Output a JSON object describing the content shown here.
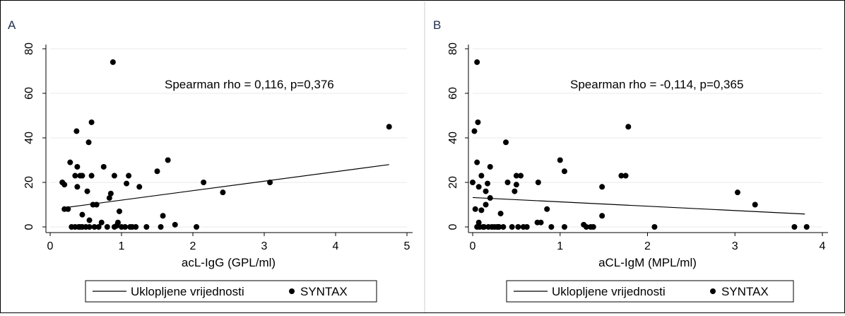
{
  "chart_data": [
    {
      "type": "scatter",
      "panel_label": "A",
      "annotation": "Spearman rho = 0,116, p=0,376",
      "xlabel": "acL-IgG (GPL/ml)",
      "ylabel": "",
      "xlim": [
        0,
        5
      ],
      "ylim": [
        0,
        80
      ],
      "xticks": [
        "0",
        "1",
        "2",
        "3",
        "4",
        "5"
      ],
      "yticks": [
        "0",
        "20",
        "40",
        "60",
        "80"
      ],
      "grid": true,
      "legend": {
        "placement": "bottom",
        "entries": [
          "Uklopljene vrijednosti",
          "SYNTAX"
        ]
      },
      "fit_line": {
        "name": "Uklopljene vrijednosti",
        "x": [
          0.17,
          4.75
        ],
        "y": [
          8.5,
          28
        ]
      },
      "series": [
        {
          "name": "SYNTAX",
          "points": [
            [
              0.17,
              20
            ],
            [
              0.2,
              19
            ],
            [
              0.2,
              8
            ],
            [
              0.25,
              8
            ],
            [
              0.28,
              29
            ],
            [
              0.3,
              0
            ],
            [
              0.35,
              0
            ],
            [
              0.35,
              23
            ],
            [
              0.37,
              43
            ],
            [
              0.38,
              18
            ],
            [
              0.38,
              27
            ],
            [
              0.4,
              0
            ],
            [
              0.42,
              0
            ],
            [
              0.42,
              23
            ],
            [
              0.45,
              23
            ],
            [
              0.45,
              0
            ],
            [
              0.45,
              5.5
            ],
            [
              0.5,
              0
            ],
            [
              0.52,
              16
            ],
            [
              0.54,
              38
            ],
            [
              0.55,
              0
            ],
            [
              0.55,
              3
            ],
            [
              0.58,
              47
            ],
            [
              0.58,
              23
            ],
            [
              0.6,
              10
            ],
            [
              0.62,
              0
            ],
            [
              0.65,
              10
            ],
            [
              0.68,
              0
            ],
            [
              0.72,
              2
            ],
            [
              0.75,
              27
            ],
            [
              0.8,
              0
            ],
            [
              0.83,
              13
            ],
            [
              0.85,
              15
            ],
            [
              0.88,
              74
            ],
            [
              0.9,
              23
            ],
            [
              0.9,
              0
            ],
            [
              0.93,
              0.5
            ],
            [
              0.95,
              2
            ],
            [
              0.97,
              7
            ],
            [
              1.0,
              0
            ],
            [
              1.05,
              0
            ],
            [
              1.07,
              19.5
            ],
            [
              1.1,
              23
            ],
            [
              1.12,
              0
            ],
            [
              1.15,
              0
            ],
            [
              1.2,
              0
            ],
            [
              1.25,
              18
            ],
            [
              1.35,
              0
            ],
            [
              1.5,
              25
            ],
            [
              1.55,
              0
            ],
            [
              1.58,
              5
            ],
            [
              1.65,
              30
            ],
            [
              1.75,
              1
            ],
            [
              2.05,
              0
            ],
            [
              2.15,
              20
            ],
            [
              2.42,
              15.5
            ],
            [
              3.08,
              20
            ],
            [
              4.75,
              45
            ]
          ]
        }
      ]
    },
    {
      "type": "scatter",
      "panel_label": "B",
      "annotation": "Spearman rho = -0,114, p=0,365",
      "xlabel": "aCL-IgM (MPL/ml)",
      "ylabel": "",
      "xlim": [
        0,
        4
      ],
      "ylim": [
        0,
        80
      ],
      "xticks": [
        "0",
        "1",
        "2",
        "3",
        "4"
      ],
      "yticks": [
        "0",
        "20",
        "40",
        "60",
        "80"
      ],
      "grid": true,
      "legend": {
        "placement": "bottom",
        "entries": [
          "Uklopljene vrijednosti",
          "SYNTAX"
        ]
      },
      "fit_line": {
        "name": "Uklopljene vrijednosti",
        "x": [
          0.0,
          3.8
        ],
        "y": [
          13.2,
          5.8
        ]
      },
      "series": [
        {
          "name": "SYNTAX",
          "points": [
            [
              0.0,
              20
            ],
            [
              0.02,
              43
            ],
            [
              0.03,
              8
            ],
            [
              0.05,
              74
            ],
            [
              0.05,
              29
            ],
            [
              0.05,
              0
            ],
            [
              0.06,
              47
            ],
            [
              0.07,
              18
            ],
            [
              0.07,
              2
            ],
            [
              0.08,
              0
            ],
            [
              0.1,
              23
            ],
            [
              0.1,
              7.5
            ],
            [
              0.12,
              0
            ],
            [
              0.13,
              0
            ],
            [
              0.15,
              10
            ],
            [
              0.15,
              16
            ],
            [
              0.17,
              19.5
            ],
            [
              0.18,
              0
            ],
            [
              0.2,
              27
            ],
            [
              0.2,
              13
            ],
            [
              0.22,
              0
            ],
            [
              0.25,
              0
            ],
            [
              0.28,
              0
            ],
            [
              0.3,
              0
            ],
            [
              0.3,
              0
            ],
            [
              0.32,
              6
            ],
            [
              0.35,
              0
            ],
            [
              0.38,
              38
            ],
            [
              0.4,
              20
            ],
            [
              0.45,
              0
            ],
            [
              0.48,
              16
            ],
            [
              0.5,
              19
            ],
            [
              0.5,
              23
            ],
            [
              0.52,
              0
            ],
            [
              0.55,
              23
            ],
            [
              0.58,
              0
            ],
            [
              0.62,
              0
            ],
            [
              0.74,
              2
            ],
            [
              0.75,
              20
            ],
            [
              0.78,
              2
            ],
            [
              0.85,
              8
            ],
            [
              0.9,
              0
            ],
            [
              1.0,
              30
            ],
            [
              1.05,
              25
            ],
            [
              1.05,
              0
            ],
            [
              1.27,
              1
            ],
            [
              1.3,
              0
            ],
            [
              1.35,
              0
            ],
            [
              1.38,
              0
            ],
            [
              1.48,
              18
            ],
            [
              1.48,
              5
            ],
            [
              1.7,
              23
            ],
            [
              1.75,
              23
            ],
            [
              1.78,
              45
            ],
            [
              2.08,
              0
            ],
            [
              3.03,
              15.5
            ],
            [
              3.23,
              10
            ],
            [
              3.68,
              0
            ],
            [
              3.82,
              0
            ]
          ]
        }
      ]
    }
  ]
}
